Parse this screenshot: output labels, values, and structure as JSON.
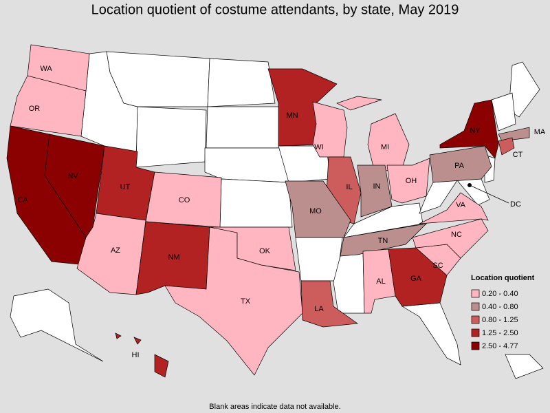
{
  "title": "Location quotient of costume attendants, by state, May 2019",
  "legend": {
    "title": "Location quotient",
    "classes": [
      {
        "label": "0.20 - 0.40",
        "color": "#ffb6c1"
      },
      {
        "label": "0.40 - 0.80",
        "color": "#bc8f8f"
      },
      {
        "label": "0.80 - 1.25",
        "color": "#cd5c5c"
      },
      {
        "label": "1.25 - 2.50",
        "color": "#b22222"
      },
      {
        "label": "2.50 - 4.77",
        "color": "#8b0000"
      }
    ]
  },
  "states": [
    {
      "abbr": "WA",
      "class": 0
    },
    {
      "abbr": "OR",
      "class": 0
    },
    {
      "abbr": "CA",
      "class": 4
    },
    {
      "abbr": "NV",
      "class": 4
    },
    {
      "abbr": "UT",
      "class": 3
    },
    {
      "abbr": "AZ",
      "class": 0
    },
    {
      "abbr": "CO",
      "class": 0
    },
    {
      "abbr": "NM",
      "class": 3
    },
    {
      "abbr": "TX",
      "class": 0
    },
    {
      "abbr": "OK",
      "class": 0
    },
    {
      "abbr": "MN",
      "class": 3
    },
    {
      "abbr": "WI",
      "class": 0
    },
    {
      "abbr": "MI",
      "class": 0
    },
    {
      "abbr": "IL",
      "class": 2
    },
    {
      "abbr": "IN",
      "class": 1
    },
    {
      "abbr": "OH",
      "class": 0
    },
    {
      "abbr": "MO",
      "class": 1
    },
    {
      "abbr": "TN",
      "class": 1
    },
    {
      "abbr": "LA",
      "class": 2
    },
    {
      "abbr": "AL",
      "class": 0
    },
    {
      "abbr": "GA",
      "class": 3
    },
    {
      "abbr": "SC",
      "class": 0
    },
    {
      "abbr": "NC",
      "class": 0
    },
    {
      "abbr": "VA",
      "class": 0
    },
    {
      "abbr": "PA",
      "class": 1
    },
    {
      "abbr": "NY",
      "class": 4
    },
    {
      "abbr": "MA",
      "class": 1
    },
    {
      "abbr": "CT",
      "class": 2
    },
    {
      "abbr": "DC",
      "class": null
    },
    {
      "abbr": "HI",
      "class": 3
    }
  ],
  "note": "Blank areas indicate data not available."
}
